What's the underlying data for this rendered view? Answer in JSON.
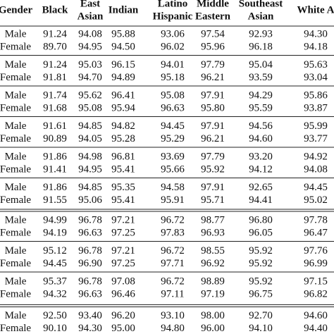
{
  "table": {
    "header": [
      [
        "Gender"
      ],
      [
        "Black"
      ],
      [
        "East",
        "Asian"
      ],
      [
        "Indian"
      ],
      [
        "Latino",
        "Hispanic"
      ],
      [
        "Middle",
        "Eastern"
      ],
      [
        "Southeast",
        "Asian"
      ],
      [
        "White A"
      ]
    ],
    "groups": [
      [
        [
          "Male",
          "91.24",
          "94.08",
          "95.88",
          "93.06",
          "97.54",
          "92.93",
          "94.30"
        ],
        [
          "Female",
          "89.70",
          "94.95",
          "94.50",
          "96.02",
          "95.96",
          "96.18",
          "94.18"
        ]
      ],
      [
        [
          "Male",
          "91.24",
          "95.03",
          "96.15",
          "94.01",
          "97.79",
          "95.04",
          "95.63"
        ],
        [
          "Female",
          "91.81",
          "94.70",
          "94.89",
          "95.18",
          "96.21",
          "93.59",
          "93.04"
        ]
      ],
      [
        [
          "Male",
          "91.74",
          "95.62",
          "96.41",
          "95.08",
          "97.91",
          "94.29",
          "95.86"
        ],
        [
          "Female",
          "91.68",
          "95.08",
          "95.94",
          "96.63",
          "95.80",
          "95.59",
          "93.87"
        ]
      ],
      [
        [
          "Male",
          "91.61",
          "94.85",
          "94.82",
          "94.45",
          "97.91",
          "94.56",
          "95.99"
        ],
        [
          "Female",
          "90.89",
          "94.05",
          "95.28",
          "95.29",
          "96.21",
          "94.60",
          "93.77"
        ]
      ],
      [
        [
          "Male",
          "91.86",
          "94.98",
          "96.81",
          "93.69",
          "97.79",
          "93.20",
          "94.92"
        ],
        [
          "Female",
          "91.41",
          "94.95",
          "95.41",
          "95.66",
          "95.92",
          "94.12",
          "94.08"
        ]
      ],
      [
        [
          "Male",
          "91.86",
          "94.85",
          "95.35",
          "94.58",
          "97.91",
          "92.65",
          "94.45"
        ],
        [
          "Female",
          "91.55",
          "95.06",
          "95.41",
          "95.91",
          "95.71",
          "94.41",
          "95.02"
        ]
      ],
      [
        [
          "Male",
          "94.99",
          "96.78",
          "97.21",
          "96.72",
          "98.77",
          "96.80",
          "97.78"
        ],
        [
          "Female",
          "94.19",
          "96.63",
          "97.25",
          "97.83",
          "96.93",
          "96.05",
          "96.47"
        ]
      ],
      [
        [
          "Male",
          "95.12",
          "96.78",
          "97.21",
          "96.72",
          "98.55",
          "95.92",
          "97.76"
        ],
        [
          "Female",
          "94.45",
          "96.90",
          "97.25",
          "97.71",
          "96.92",
          "95.92",
          "96.99"
        ]
      ],
      [
        [
          "Male",
          "95.37",
          "96.78",
          "97.08",
          "96.72",
          "98.89",
          "95.92",
          "97.15"
        ],
        [
          "Female",
          "94.32",
          "96.63",
          "96.46",
          "97.11",
          "97.19",
          "96.75",
          "96.82"
        ]
      ],
      [
        [
          "Male",
          "92.50",
          "93.40",
          "96.20",
          "93.10",
          "98.00",
          "92.70",
          "94.60"
        ],
        [
          "Female",
          "90.10",
          "94.30",
          "95.00",
          "94.80",
          "96.00",
          "94.10",
          "94.40"
        ]
      ]
    ]
  }
}
